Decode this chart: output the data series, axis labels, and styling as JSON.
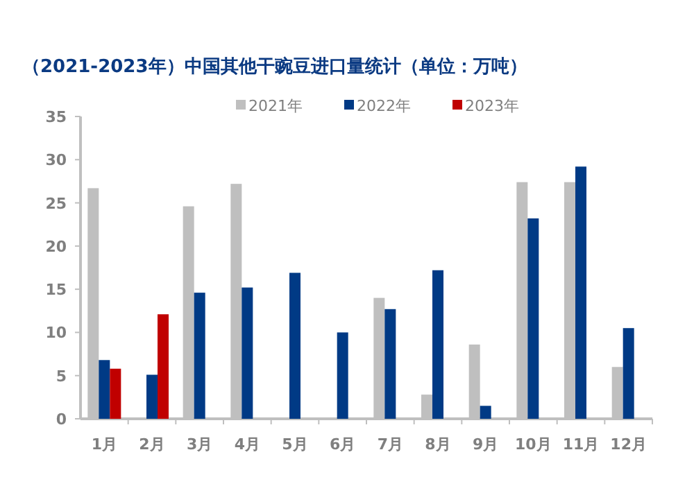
{
  "chart_data": {
    "type": "bar",
    "title": "（2021-2023年）中国其他干豌豆进口量统计（单位：万吨）",
    "categories": [
      "1月",
      "2月",
      "3月",
      "4月",
      "5月",
      "6月",
      "7月",
      "8月",
      "9月",
      "10月",
      "11月",
      "12月"
    ],
    "series": [
      {
        "name": "2021年",
        "color": "#bfbfbf",
        "values": [
          26.7,
          null,
          24.6,
          27.2,
          null,
          null,
          14.0,
          2.8,
          8.6,
          27.4,
          27.4,
          6.0
        ]
      },
      {
        "name": "2022年",
        "color": "#003a85",
        "values": [
          6.8,
          5.1,
          14.6,
          15.2,
          16.9,
          10.0,
          12.7,
          17.2,
          1.5,
          23.2,
          29.2,
          10.5
        ]
      },
      {
        "name": "2023年",
        "color": "#c00000",
        "values": [
          5.8,
          12.1,
          null,
          null,
          null,
          null,
          null,
          null,
          null,
          null,
          null,
          null
        ]
      }
    ],
    "ylim": [
      0,
      35
    ],
    "yticks": [
      0,
      5,
      10,
      15,
      20,
      25,
      30,
      35
    ],
    "legend": "top",
    "grid": false
  }
}
